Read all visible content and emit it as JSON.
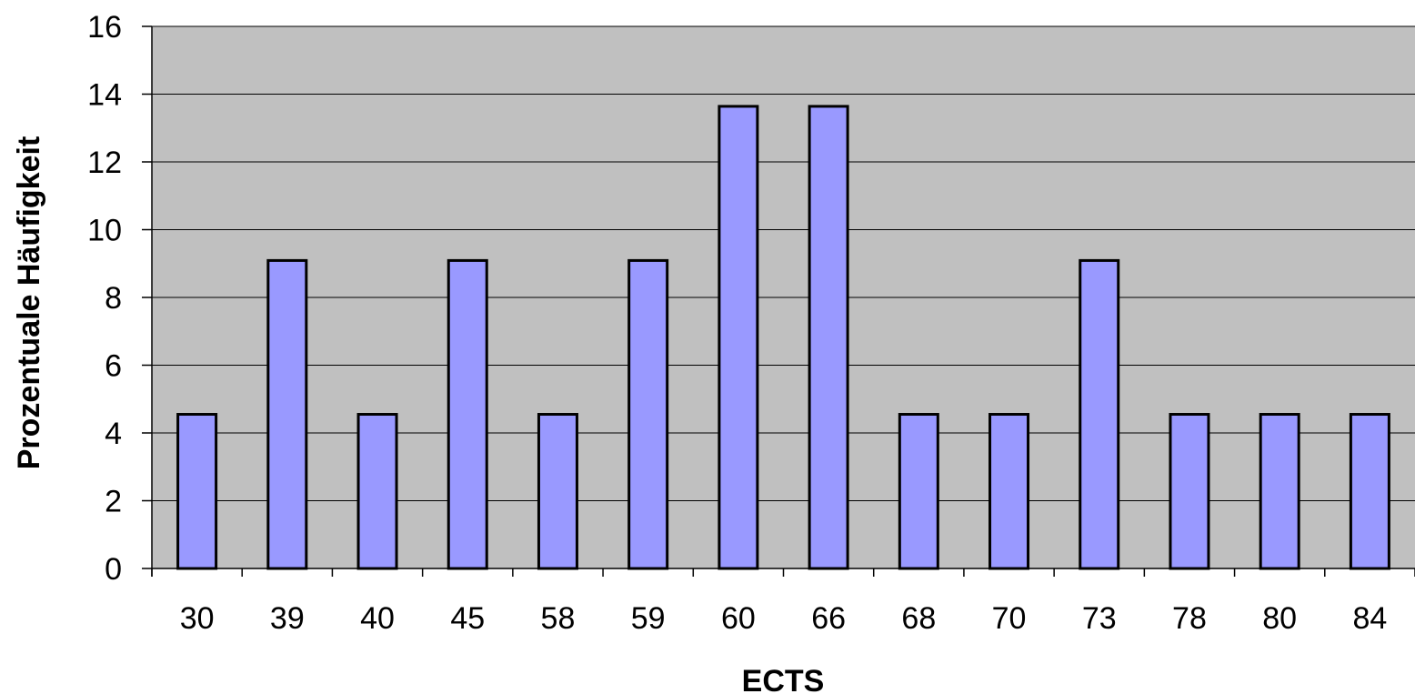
{
  "chart_data": {
    "type": "bar",
    "title": "",
    "xlabel": "ECTS",
    "ylabel": "Prozentuale Häufigkeit",
    "categories": [
      "30",
      "39",
      "40",
      "45",
      "58",
      "59",
      "60",
      "66",
      "68",
      "70",
      "73",
      "78",
      "80",
      "84"
    ],
    "values": [
      4.55,
      9.09,
      4.55,
      9.09,
      4.55,
      9.09,
      13.64,
      13.64,
      4.55,
      4.55,
      9.09,
      4.55,
      4.55,
      4.55
    ],
    "ylim": [
      0,
      16
    ],
    "yticks": [
      "0",
      "2",
      "4",
      "6",
      "8",
      "10",
      "12",
      "14",
      "16"
    ],
    "grid": true,
    "legend": "none",
    "colors": {
      "plot_background": "#c0c0c0",
      "bar_fill": "#9999ff",
      "bar_stroke": "#000000",
      "gridline": "#000000"
    }
  }
}
